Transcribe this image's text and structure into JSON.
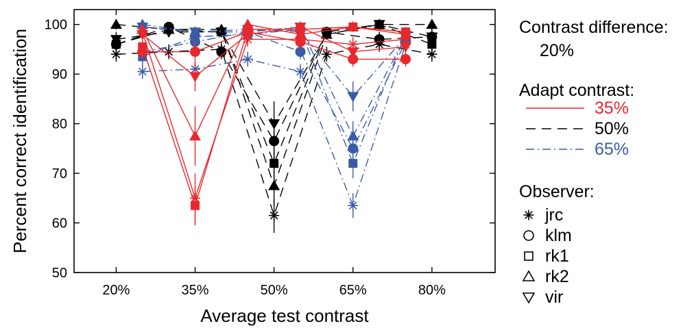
{
  "chart_data": {
    "type": "line",
    "title": "",
    "xlabel": "Average test contrast",
    "ylabel": "Percent correct identification",
    "x_ticks": [
      "20%",
      "35%",
      "50%",
      "65%",
      "80%"
    ],
    "x_tick_values": [
      20,
      35,
      50,
      65,
      80
    ],
    "xlim": [
      12,
      92
    ],
    "ylim": [
      50,
      103
    ],
    "y_ticks": [
      50,
      60,
      70,
      80,
      90,
      100
    ],
    "grid": false,
    "legend_position": "right",
    "legend": {
      "contrast_difference_title": "Contrast difference:",
      "contrast_difference_value": "20%",
      "adapt_title": "Adapt contrast:",
      "adapt_items": [
        {
          "label": "35%",
          "color": "#e8282d",
          "dash": "solid"
        },
        {
          "label": "50%",
          "color": "#000000",
          "dash": "dashed"
        },
        {
          "label": "65%",
          "color": "#3a5ca8",
          "dash": "dashdot"
        }
      ],
      "observer_title": "Observer:",
      "observer_items": [
        {
          "label": "jrc",
          "marker": "asterisk"
        },
        {
          "label": "klm",
          "marker": "circle"
        },
        {
          "label": "rk1",
          "marker": "square"
        },
        {
          "label": "rk2",
          "marker": "triangle-up"
        },
        {
          "label": "vir",
          "marker": "triangle-down"
        }
      ]
    },
    "series": [
      {
        "adapt": "35%",
        "observer": "jrc",
        "color": "#e8282d",
        "dash": "solid",
        "marker": "asterisk",
        "x": [
          25,
          35,
          45,
          55,
          65,
          75
        ],
        "y": [
          98.5,
          65,
          97,
          97,
          96,
          97
        ],
        "err": [
          1.5,
          5,
          1.5,
          1.5,
          1.5,
          1.5
        ]
      },
      {
        "adapt": "35%",
        "observer": "klm",
        "color": "#e8282d",
        "dash": "solid",
        "marker": "circle",
        "x": [
          25,
          35,
          45,
          55,
          65,
          75
        ],
        "y": [
          94.5,
          94.5,
          98.5,
          96.5,
          93,
          93
        ],
        "err": [
          1.5,
          2,
          1.5,
          1.5,
          1.5,
          1.5
        ]
      },
      {
        "adapt": "35%",
        "observer": "rk1",
        "color": "#e8282d",
        "dash": "solid",
        "marker": "square",
        "x": [
          25,
          35,
          45,
          55,
          65,
          75
        ],
        "y": [
          95.5,
          63.5,
          99,
          99,
          99.5,
          98.5
        ],
        "err": [
          1.5,
          4,
          1,
          1,
          1,
          1
        ]
      },
      {
        "adapt": "35%",
        "observer": "rk2",
        "color": "#e8282d",
        "dash": "solid",
        "marker": "triangle-up",
        "x": [
          25,
          35,
          45,
          55,
          65,
          75
        ],
        "y": [
          99,
          77.5,
          100,
          98,
          99.5,
          98
        ],
        "err": [
          1,
          6,
          1,
          1.5,
          1,
          1
        ]
      },
      {
        "adapt": "35%",
        "observer": "vir",
        "color": "#e8282d",
        "dash": "solid",
        "marker": "triangle-down",
        "x": [
          25,
          35,
          45,
          55,
          65,
          75
        ],
        "y": [
          98,
          89.5,
          98,
          99.5,
          94.5,
          95.5
        ],
        "err": [
          1.5,
          3,
          1.5,
          1,
          2,
          2
        ]
      },
      {
        "adapt": "50%",
        "observer": "jrc",
        "color": "#000000",
        "dash": "dashed",
        "marker": "asterisk",
        "x": [
          20,
          30,
          40,
          50,
          60,
          70,
          80
        ],
        "y": [
          94,
          94.5,
          95,
          61.5,
          94,
          96,
          94
        ],
        "err": [
          1.5,
          1.5,
          1.5,
          3.5,
          1.5,
          1.5,
          1.5
        ]
      },
      {
        "adapt": "50%",
        "observer": "klm",
        "color": "#000000",
        "dash": "dashed",
        "marker": "circle",
        "x": [
          20,
          30,
          40,
          50,
          60,
          70,
          80
        ],
        "y": [
          96,
          99.5,
          94.5,
          76.5,
          98.5,
          97,
          97.5
        ],
        "err": [
          1.5,
          1,
          1.5,
          4,
          1,
          1.5,
          1.5
        ]
      },
      {
        "adapt": "50%",
        "observer": "rk1",
        "color": "#000000",
        "dash": "dashed",
        "marker": "square",
        "x": [
          20,
          30,
          40,
          50,
          60,
          70,
          80
        ],
        "y": [
          96,
          99,
          98.5,
          72,
          98.5,
          100,
          96
        ],
        "err": [
          1.5,
          1,
          1,
          5,
          1,
          1,
          1.5
        ]
      },
      {
        "adapt": "50%",
        "observer": "rk2",
        "color": "#000000",
        "dash": "dashed",
        "marker": "triangle-up",
        "x": [
          20,
          30,
          40,
          50,
          60,
          70,
          80
        ],
        "y": [
          100,
          99,
          99,
          67.5,
          98,
          100,
          100
        ],
        "err": [
          1,
          1,
          1,
          4,
          1,
          1,
          1
        ]
      },
      {
        "adapt": "50%",
        "observer": "vir",
        "color": "#000000",
        "dash": "dashed",
        "marker": "triangle-down",
        "x": [
          20,
          30,
          40,
          50,
          60,
          70,
          80
        ],
        "y": [
          97,
          98.5,
          98.5,
          80,
          98,
          100,
          97.5
        ],
        "err": [
          1.5,
          1,
          1,
          4.5,
          1,
          1,
          1.5
        ]
      },
      {
        "adapt": "65%",
        "observer": "jrc",
        "color": "#3a5ca8",
        "dash": "dashdot",
        "marker": "asterisk",
        "x": [
          25,
          35,
          45,
          55,
          65,
          75
        ],
        "y": [
          90.5,
          91,
          93,
          90.5,
          63.5,
          96
        ],
        "err": [
          1.5,
          1.5,
          1.5,
          1.5,
          2.5,
          1.5
        ]
      },
      {
        "adapt": "65%",
        "observer": "klm",
        "color": "#3a5ca8",
        "dash": "dashdot",
        "marker": "circle",
        "x": [
          25,
          35,
          45,
          55,
          65,
          75
        ],
        "y": [
          94.5,
          96.5,
          98.5,
          94.5,
          75,
          96.5
        ],
        "err": [
          1.5,
          1.5,
          1,
          1.5,
          3,
          1.5
        ]
      },
      {
        "adapt": "65%",
        "observer": "rk1",
        "color": "#3a5ca8",
        "dash": "dashdot",
        "marker": "square",
        "x": [
          25,
          35,
          45,
          55,
          65,
          75
        ],
        "y": [
          93.5,
          97.5,
          98,
          99,
          72,
          98
        ],
        "err": [
          1.5,
          1,
          1,
          1,
          3,
          1
        ]
      },
      {
        "adapt": "65%",
        "observer": "rk2",
        "color": "#3a5ca8",
        "dash": "dashdot",
        "marker": "triangle-up",
        "x": [
          25,
          35,
          45,
          55,
          65,
          75
        ],
        "y": [
          100,
          98.5,
          98.5,
          99.5,
          77.5,
          97.5
        ],
        "err": [
          1,
          1,
          1,
          1,
          3,
          1
        ]
      },
      {
        "adapt": "65%",
        "observer": "vir",
        "color": "#3a5ca8",
        "dash": "dashdot",
        "marker": "triangle-down",
        "x": [
          25,
          35,
          45,
          55,
          65,
          75
        ],
        "y": [
          99.5,
          98.5,
          99,
          98.5,
          85.5,
          97.5
        ],
        "err": [
          1,
          1,
          1,
          1,
          3,
          1
        ]
      }
    ]
  }
}
